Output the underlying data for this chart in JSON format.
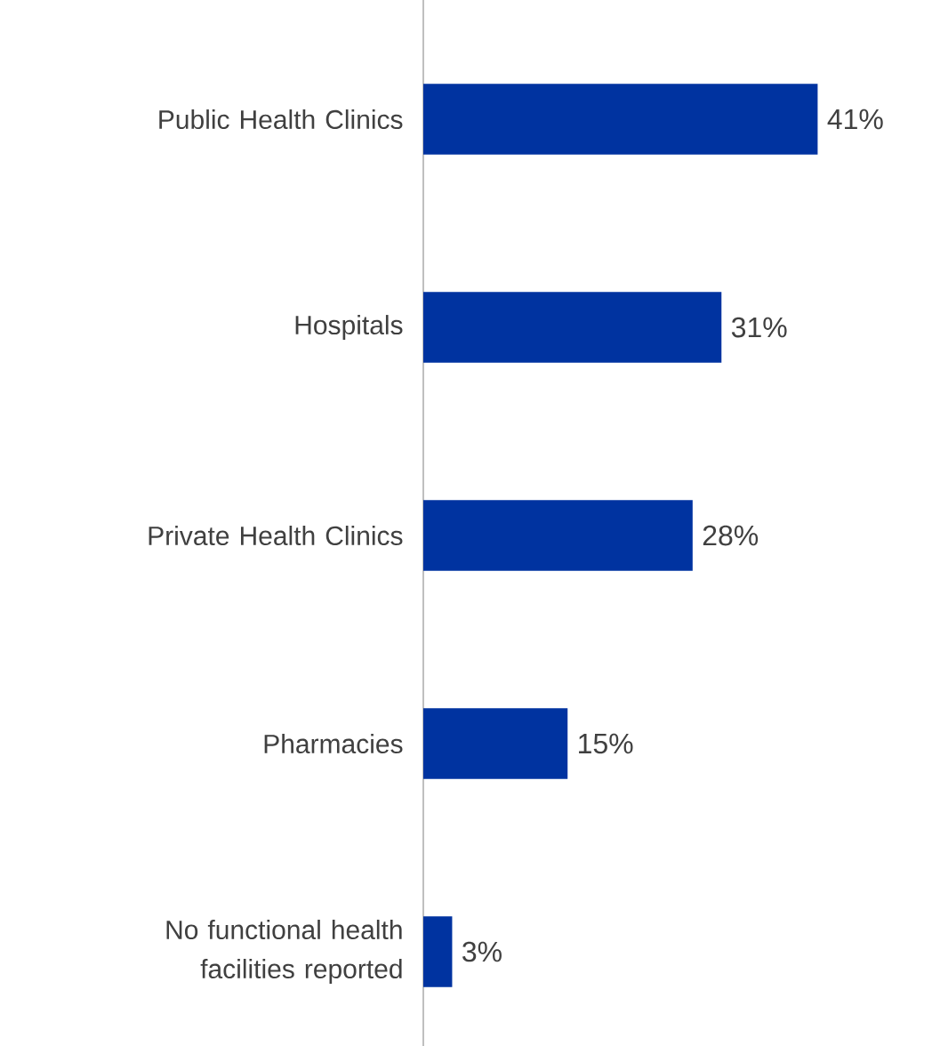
{
  "chart_data": {
    "type": "bar",
    "orientation": "horizontal",
    "categories": [
      "Public Health Clinics",
      "Hospitals",
      "Private Health Clinics",
      "Pharmacies",
      "No functional health facilities reported"
    ],
    "values": [
      41,
      31,
      28,
      15,
      3
    ],
    "value_labels": [
      "41%",
      "31%",
      "28%",
      "15%",
      "3%"
    ],
    "color": "#0033a0"
  }
}
